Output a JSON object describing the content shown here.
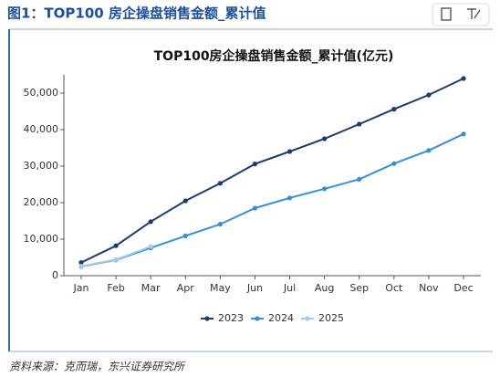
{
  "title": "图1：TOP100 房企操盘销售金额_累计值",
  "source": "资料来源：克而瑞，东兴证券研究所",
  "chart_data": {
    "type": "line",
    "title": "TOP100房企操盘销售金额_累计值(亿元)",
    "categories": [
      "Jan",
      "Feb",
      "Mar",
      "Apr",
      "May",
      "Jun",
      "Jul",
      "Aug",
      "Sep",
      "Oct",
      "Nov",
      "Dec"
    ],
    "series": [
      {
        "name": "2023",
        "color": "#1f3b6b",
        "values": [
          3600,
          8200,
          14800,
          20500,
          25300,
          30600,
          34000,
          37500,
          41500,
          45600,
          49500,
          54000
        ]
      },
      {
        "name": "2024",
        "color": "#3a8fd1",
        "values": [
          2500,
          4300,
          7600,
          10900,
          14100,
          18500,
          21300,
          23800,
          26400,
          30700,
          34300,
          38800
        ]
      },
      {
        "name": "2025",
        "color": "#a9c8ec",
        "values": [
          2600,
          4400,
          8000,
          null,
          null,
          null,
          null,
          null,
          null,
          null,
          null,
          null
        ]
      }
    ],
    "ylim": [
      0,
      55000
    ],
    "yticks": [
      0,
      {
        "value": 10000,
        "label": "10,000"
      },
      {
        "value": 20000,
        "label": "20,000"
      },
      {
        "value": 30000,
        "label": "30,000"
      },
      {
        "value": 40000,
        "label": "40,000"
      },
      {
        "value": 50000,
        "label": "50,000"
      }
    ],
    "legend": "bottom"
  }
}
